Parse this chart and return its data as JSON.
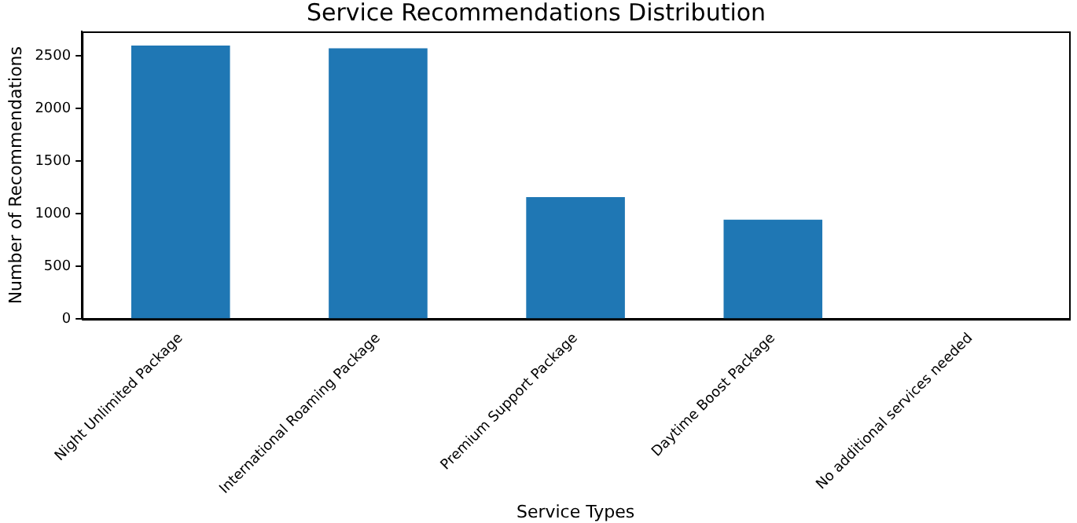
{
  "chart_data": {
    "type": "bar",
    "title": "Service Recommendations Distribution",
    "xlabel": "Service Types",
    "ylabel": "Number of Recommendations",
    "categories": [
      "Night Unlimited Package",
      "International Roaming Package",
      "Premium Support Package",
      "Daytime Boost Package",
      "No additional services needed"
    ],
    "values": [
      2600,
      2575,
      1160,
      945,
      0
    ],
    "color": "#1f77b4",
    "ylim": [
      0,
      2735
    ],
    "yticks": [
      0,
      500,
      1000,
      1500,
      2000,
      2500
    ],
    "grid": false,
    "legend": false
  }
}
